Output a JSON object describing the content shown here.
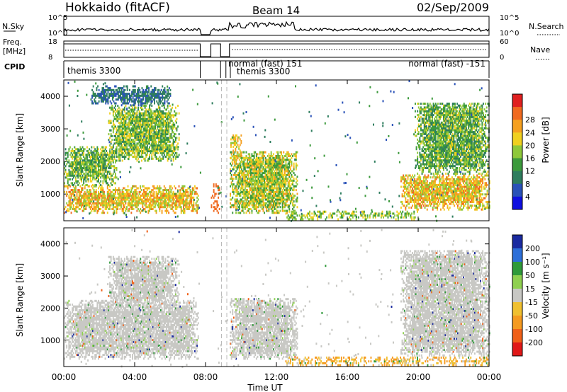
{
  "header": {
    "station": "Hokkaido (fitACF)",
    "beam": "Beam 14",
    "date": "02/Sep/2009"
  },
  "small_panels": {
    "nsky_label": "N.Sky",
    "nsky_ticks": [
      "10^5",
      "10^0"
    ],
    "nsearch_label": "N.Search",
    "nsearch_ticks": [
      "10^5",
      "10^0"
    ],
    "freq_label_lines": [
      "Freq.",
      "[MHz]"
    ],
    "freq_ticks": [
      "18",
      "8"
    ],
    "nave_label": "Nave",
    "nave_ticks": [
      "60",
      "0"
    ],
    "cpid_label": "CPID",
    "cpid_entries": [
      {
        "text": "themis 3300",
        "start_hr": 0.0,
        "end_hr": 7.7
      },
      {
        "text": "normal (fast) 151",
        "start_hr": 8.85,
        "end_hr": 9.15
      },
      {
        "text": "themis 3300",
        "start_hr": 9.15,
        "end_hr": 9.4
      },
      {
        "text": "normal (fast) -151",
        "start_hr": 9.4,
        "end_hr": 24.0
      }
    ]
  },
  "colorbars": {
    "power": {
      "label": "Power [dB]",
      "ticks": [
        "4",
        "8",
        "12",
        "16",
        "20",
        "24",
        "28"
      ],
      "colors": [
        "#1010e0",
        "#2a52b8",
        "#2e7d5e",
        "#3c9a3c",
        "#8ec83a",
        "#f0d020",
        "#f5a020",
        "#f06a20",
        "#e02020"
      ]
    },
    "velocity": {
      "label": "Velocity [m s⁻¹]",
      "ticks": [
        "200",
        "100",
        "50",
        "15",
        "-15",
        "-50",
        "-100",
        "-200"
      ],
      "colors": [
        "#1a2aa0",
        "#2d6fd8",
        "#2f9a3a",
        "#8fd050",
        "#c8c8c4",
        "#f0c030",
        "#f59a20",
        "#f06018",
        "#e01818"
      ]
    }
  },
  "axes": {
    "ylabel": "Slant Range [km]",
    "yticks": [
      "1000",
      "2000",
      "3000",
      "4000"
    ],
    "xlabel": "Time UT",
    "xticks": [
      "00:00",
      "04:00",
      "08:00",
      "12:00",
      "16:00",
      "20:00",
      "00:00"
    ]
  },
  "chart_data": [
    {
      "type": "heatmap",
      "title": "",
      "quantity": "Power [dB]",
      "xlabel": "",
      "ylabel": "Slant Range [km]",
      "xlim": [
        0,
        24
      ],
      "ylim": [
        180,
        4500
      ],
      "xticks": [
        "00:00",
        "04:00",
        "08:00",
        "12:00",
        "16:00",
        "20:00",
        "00:00"
      ],
      "yticks": [
        1000,
        2000,
        3000,
        4000
      ],
      "color_ticks": [
        4,
        8,
        12,
        16,
        20,
        24,
        28
      ],
      "data_gaps_hr": [
        [
          7.7,
          8.3
        ],
        [
          8.9,
          9.05
        ],
        [
          9.2,
          9.35
        ]
      ],
      "regions": [
        {
          "t": [
            0.0,
            7.6
          ],
          "r": [
            400,
            1250
          ],
          "p": [
            14,
            28
          ]
        },
        {
          "t": [
            0.0,
            3.0
          ],
          "r": [
            1250,
            2450
          ],
          "p": [
            8,
            20
          ]
        },
        {
          "t": [
            2.5,
            6.5
          ],
          "r": [
            2000,
            3700
          ],
          "p": [
            8,
            22
          ]
        },
        {
          "t": [
            1.5,
            6.0
          ],
          "r": [
            3700,
            4300
          ],
          "p": [
            4,
            10
          ]
        },
        {
          "t": [
            8.3,
            8.8
          ],
          "r": [
            400,
            1300
          ],
          "p": [
            26,
            30
          ]
        },
        {
          "t": [
            9.3,
            13.2
          ],
          "r": [
            400,
            2300
          ],
          "p": [
            10,
            24
          ]
        },
        {
          "t": [
            9.4,
            10.0
          ],
          "r": [
            1900,
            2800
          ],
          "p": [
            16,
            26
          ]
        },
        {
          "t": [
            12.5,
            20.0
          ],
          "r": [
            200,
            480
          ],
          "p": [
            10,
            22
          ]
        },
        {
          "t": [
            19.0,
            24.0
          ],
          "r": [
            500,
            1600
          ],
          "p": [
            14,
            28
          ]
        },
        {
          "t": [
            19.8,
            24.0
          ],
          "r": [
            1600,
            3800
          ],
          "p": [
            6,
            20
          ]
        }
      ]
    },
    {
      "type": "heatmap",
      "title": "",
      "quantity": "Velocity [m s⁻¹]",
      "xlabel": "Time UT",
      "ylabel": "Slant Range [km]",
      "xlim": [
        0,
        24
      ],
      "ylim": [
        180,
        4500
      ],
      "xticks": [
        "00:00",
        "04:00",
        "08:00",
        "12:00",
        "16:00",
        "20:00",
        "00:00"
      ],
      "yticks": [
        1000,
        2000,
        3000,
        4000
      ],
      "color_ticks": [
        200,
        100,
        50,
        15,
        -15,
        -50,
        -100,
        -200
      ],
      "dominant_value": "-15 to 15 (ground scatter, grey)",
      "regions": [
        {
          "t": [
            0.0,
            7.6
          ],
          "r": [
            400,
            2200
          ],
          "v": "grey"
        },
        {
          "t": [
            2.5,
            6.5
          ],
          "r": [
            2000,
            3600
          ],
          "v": "grey"
        },
        {
          "t": [
            9.3,
            13.2
          ],
          "r": [
            400,
            2300
          ],
          "v": "grey"
        },
        {
          "t": [
            12.5,
            24.0
          ],
          "r": [
            200,
            450
          ],
          "v": "orange (-50 to -100)"
        },
        {
          "t": [
            19.0,
            24.0
          ],
          "r": [
            500,
            3800
          ],
          "v": "grey"
        }
      ]
    }
  ]
}
